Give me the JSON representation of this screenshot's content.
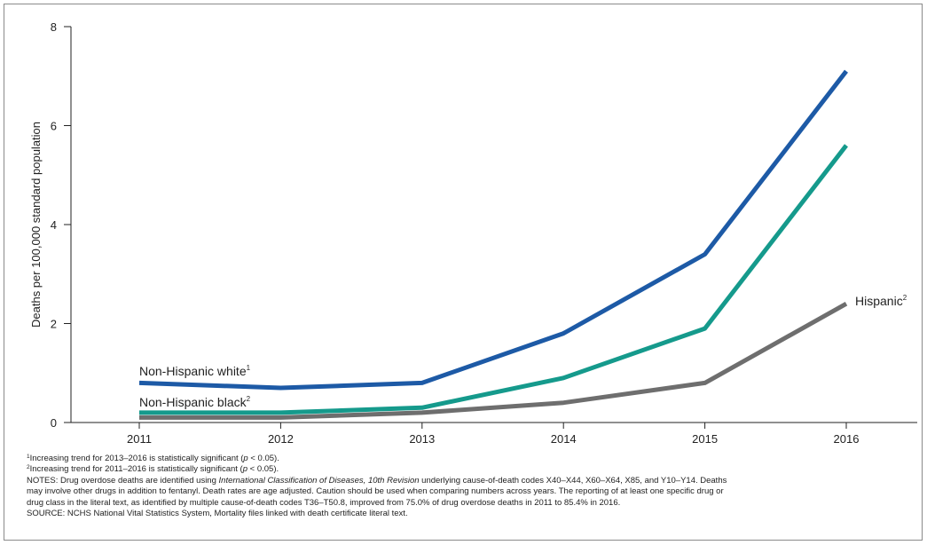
{
  "chart_data": {
    "type": "line",
    "title": "",
    "xlabel": "",
    "ylabel": "Deaths per 100,000 standard population",
    "x": [
      2011,
      2012,
      2013,
      2014,
      2015,
      2016
    ],
    "x_tick_labels": [
      "2011",
      "2012",
      "2013",
      "2014",
      "2015",
      "2016"
    ],
    "ylim": [
      0,
      8
    ],
    "y_ticks": [
      0,
      2,
      4,
      6,
      8
    ],
    "y_tick_labels": [
      "0",
      "2",
      "4",
      "6",
      "8"
    ],
    "grid": false,
    "legend": "inline labels",
    "series": [
      {
        "name": "Non-Hispanic white",
        "marker": "1",
        "color": "#1d5aa6",
        "values": [
          0.8,
          0.7,
          0.8,
          1.8,
          3.4,
          7.1
        ]
      },
      {
        "name": "Non-Hispanic black",
        "marker": "2",
        "color": "#159a8c",
        "values": [
          0.2,
          0.2,
          0.3,
          0.9,
          1.9,
          5.6
        ]
      },
      {
        "name": "Hispanic",
        "marker": "2",
        "color": "#6e6e6e",
        "values": [
          0.1,
          0.1,
          0.2,
          0.4,
          0.8,
          2.4
        ]
      }
    ]
  },
  "notes": {
    "footnote1_marker": "1",
    "footnote1_pre": "Increasing trend for 2013–2016 is statistically significant (",
    "footnote1_p": "p",
    "footnote1_post": " < 0.05).",
    "footnote2_marker": "2",
    "footnote2_pre": "Increasing trend for 2011–2016 is statistically significant (",
    "footnote2_p": "p",
    "footnote2_post": " < 0.05).",
    "notes_pre": "NOTES: Drug overdose deaths are identified using ",
    "notes_italic1": "International Classification of Diseases, 10th Revision",
    "notes_post": " underlying cause-of-death codes X40–X44, X60–X64, X85, and Y10–Y14. Deaths",
    "line2": "may involve other drugs in addition to fentanyl. Death rates are age adjusted. Caution should be used when comparing numbers across years. The reporting of at least one specific drug or",
    "line3": "drug class in the literal text, as identified by multiple cause-of-death codes T36–T50.8, improved from 75.0% of drug overdose deaths in 2011 to 85.4% in 2016.",
    "source": "SOURCE: NCHS National Vital Statistics System, Mortality files linked with death certificate literal text."
  }
}
